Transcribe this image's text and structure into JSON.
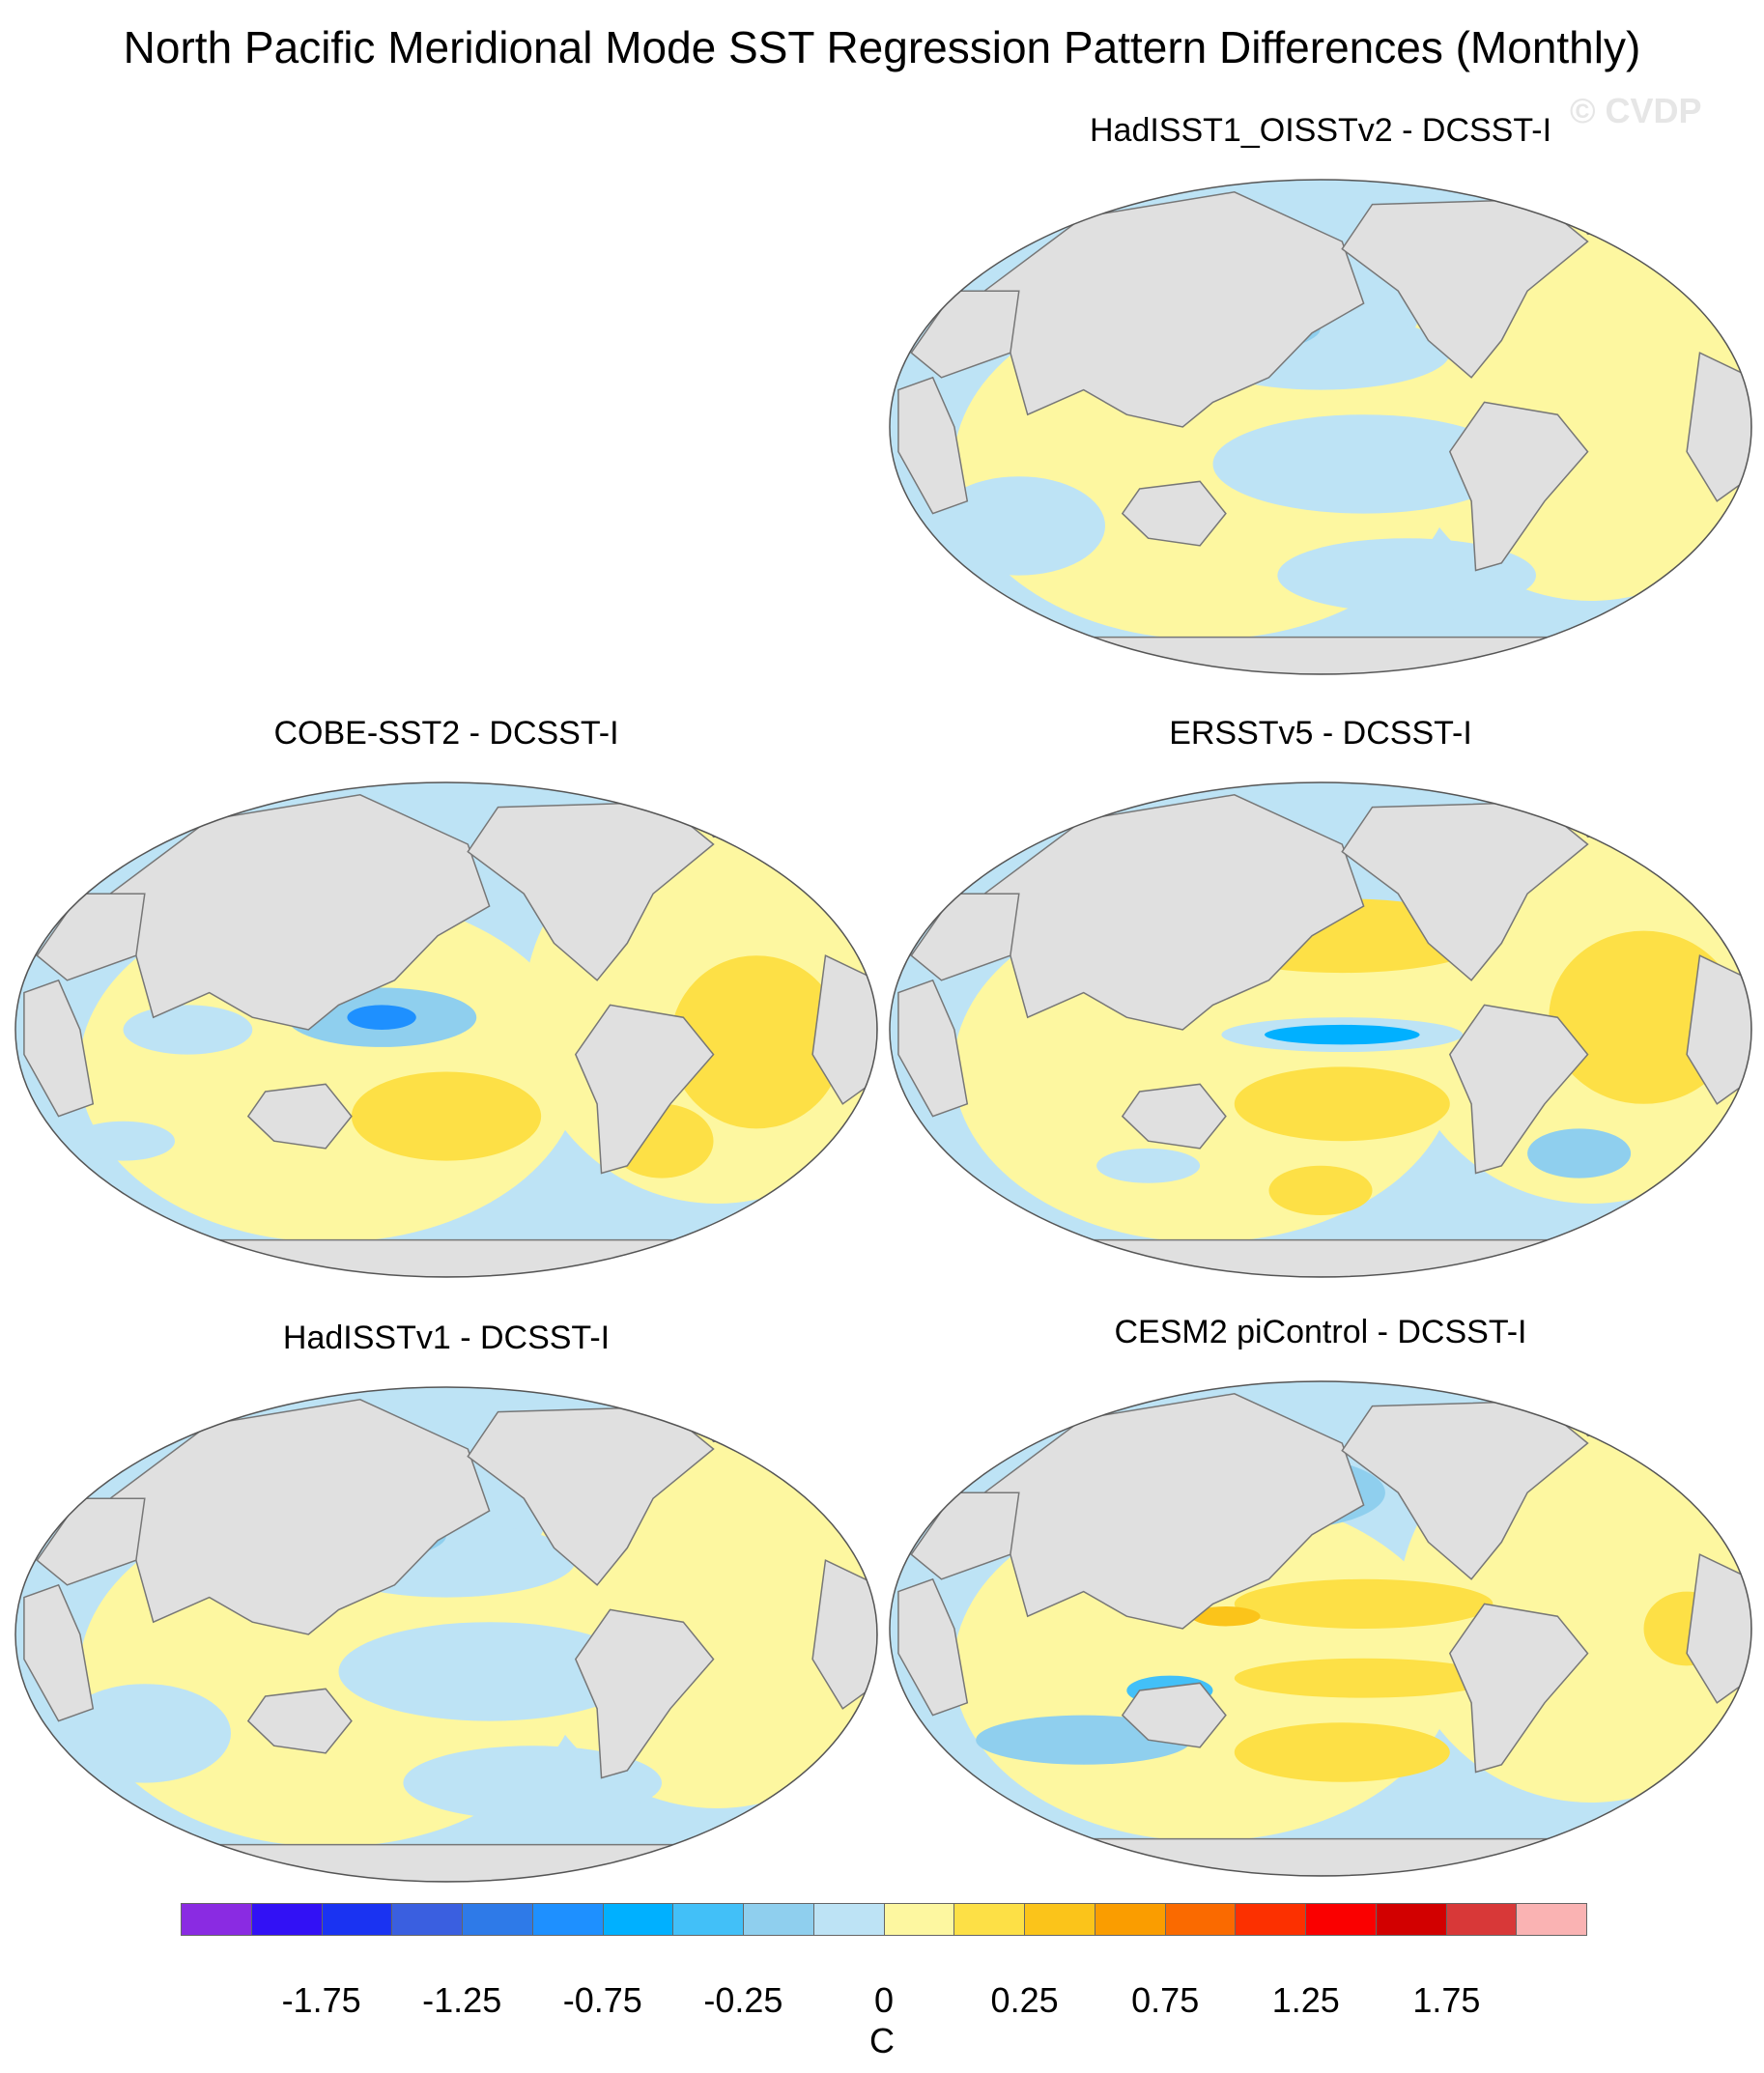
{
  "title": "North Pacific Meridional Mode SST Regression Pattern Differences (Monthly)",
  "watermark": "© CVDP",
  "panels": [
    {
      "title": "HadISST1_OISSTv2 - DCSST-I",
      "pattern": "mixed-weak"
    },
    {
      "title": "COBE-SST2 - DCSST-I",
      "pattern": "warm-with-cool-pacific"
    },
    {
      "title": "ERSSTv5 - DCSST-I",
      "pattern": "warm-with-cool-equator"
    },
    {
      "title": "HadISSTv1 - DCSST-I",
      "pattern": "mixed-weak"
    },
    {
      "title": "CESM2 piControl - DCSST-I",
      "pattern": "strong-dipole"
    }
  ],
  "colorbar": {
    "units": "C",
    "colors": [
      "#8a2be2",
      "#3211f5",
      "#1a33f2",
      "#3a5fe0",
      "#2e7ae8",
      "#1e90ff",
      "#00b0ff",
      "#42c0f8",
      "#8fcfee",
      "#bde3f5",
      "#fdf7a0",
      "#fde046",
      "#fbc41a",
      "#fa9d00",
      "#fa6a00",
      "#fc3000",
      "#fa0000",
      "#d20000",
      "#d83838",
      "#fab3b3"
    ],
    "labels": [
      "-1.75",
      "-1.25",
      "-0.75",
      "-0.25",
      "0",
      "0.25",
      "0.75",
      "1.25",
      "1.75"
    ]
  }
}
